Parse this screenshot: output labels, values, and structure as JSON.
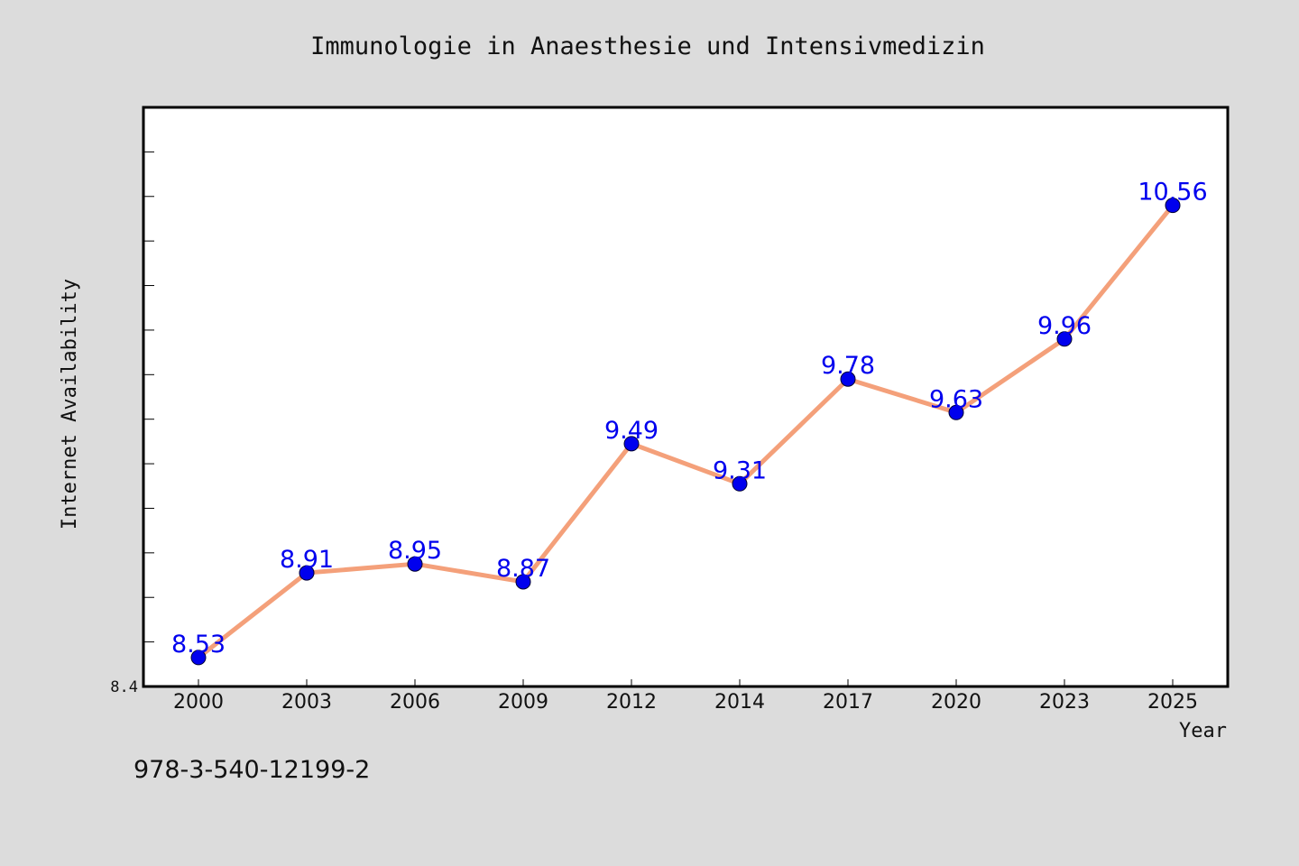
{
  "chart_data": {
    "type": "line",
    "title": "Immunologie in Anaesthesie und Intensivmedizin",
    "xlabel": "Year",
    "ylabel": "Internet Availability",
    "categories": [
      "2000",
      "2003",
      "2006",
      "2009",
      "2012",
      "2014",
      "2017",
      "2020",
      "2023",
      "2025"
    ],
    "series": [
      {
        "values": [
          8.53,
          8.91,
          8.95,
          8.87,
          9.49,
          9.31,
          9.78,
          9.63,
          9.96,
          10.56
        ],
        "labels": [
          "8.53",
          "8.91",
          "8.95",
          "8.87",
          "9.49",
          "9.31",
          "9.78",
          "9.63",
          "9.96",
          "10.56"
        ],
        "line_color": "#f4a07a",
        "marker_color": "#0000ee",
        "label_color": "#0000ee"
      }
    ],
    "ylim": [
      8.4,
      11.0
    ],
    "y_ticks_labeled": [
      {
        "value": 8.4,
        "label": "8.4"
      }
    ],
    "y_minor_step": 0.2,
    "grid": false,
    "legend": "none"
  },
  "footer": {
    "isbn": "978-3-540-12199-2"
  },
  "colors": {
    "background": "#dcdcdc",
    "plot_background": "#ffffff",
    "axis": "#000000"
  }
}
